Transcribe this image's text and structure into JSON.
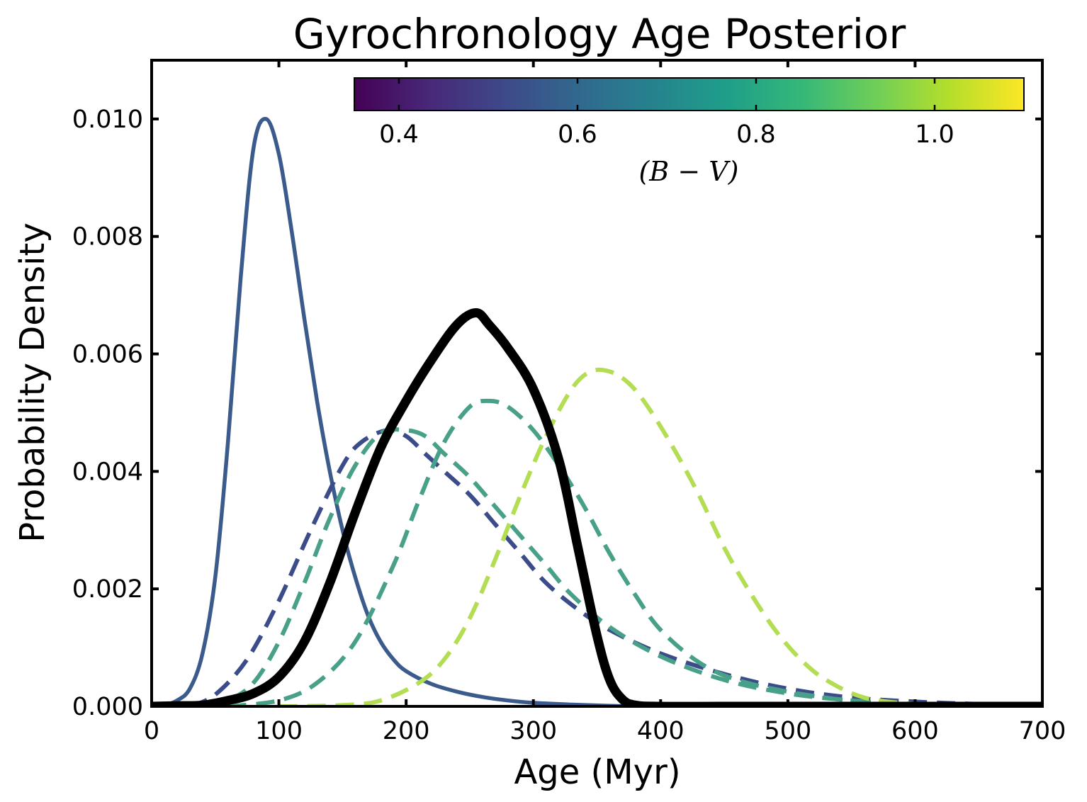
{
  "chart_data": {
    "type": "line",
    "title": "Gyrochronology Age Posterior",
    "xlabel": "Age (Myr)",
    "ylabel": "Probability Density",
    "xlim": [
      0,
      700
    ],
    "ylim": [
      0,
      0.011
    ],
    "xticks": [
      "0",
      "100",
      "200",
      "300",
      "400",
      "500",
      "600",
      "700"
    ],
    "yticks": [
      "0.000",
      "0.002",
      "0.004",
      "0.006",
      "0.008",
      "0.010"
    ],
    "colorbar": {
      "label": "(B − V)",
      "range": [
        0.35,
        1.1
      ],
      "ticks": [
        "0.4",
        "0.6",
        "0.8",
        "1.0"
      ],
      "colormap": "viridis",
      "colors": [
        "#440154",
        "#482878",
        "#3e4989",
        "#31688e",
        "#26828e",
        "#1f9e89",
        "#35b779",
        "#6ece58",
        "#b5de2b",
        "#fde725"
      ]
    },
    "series": [
      {
        "color": "#3b5b8c",
        "style": "solid",
        "x": [
          0,
          10,
          20,
          30,
          40,
          50,
          60,
          70,
          80,
          90,
          100,
          110,
          120,
          130,
          140,
          150,
          160,
          170,
          180,
          190,
          200,
          220,
          240,
          260,
          280,
          300,
          330,
          360,
          380
        ],
        "y": [
          0.0,
          2e-05,
          0.0001,
          0.0003,
          0.0009,
          0.0022,
          0.0045,
          0.0073,
          0.0095,
          0.01,
          0.0094,
          0.0081,
          0.0066,
          0.0052,
          0.004,
          0.003,
          0.0022,
          0.00155,
          0.0011,
          0.0008,
          0.0006,
          0.00038,
          0.00025,
          0.00016,
          0.0001,
          6e-05,
          3e-05,
          1e-05,
          0.0
        ]
      },
      {
        "color": "#3c4c8a",
        "style": "dashed",
        "x": [
          30,
          50,
          75,
          100,
          125,
          150,
          165,
          185,
          200,
          215,
          230,
          250,
          270,
          290,
          310,
          335,
          360,
          400,
          450,
          500,
          550,
          600,
          650,
          700
        ],
        "y": [
          0.0,
          0.0002,
          0.0008,
          0.0018,
          0.003,
          0.0041,
          0.0045,
          0.0047,
          0.0046,
          0.0043,
          0.004,
          0.0036,
          0.0031,
          0.0026,
          0.0021,
          0.00165,
          0.0013,
          0.0009,
          0.00055,
          0.0003,
          0.00015,
          8e-05,
          4e-05,
          2e-05
        ]
      },
      {
        "color": "#48a088",
        "style": "dashed",
        "x": [
          40,
          60,
          80,
          100,
          120,
          140,
          160,
          180,
          200,
          215,
          230,
          250,
          270,
          290,
          310,
          330,
          360,
          400,
          450,
          500,
          550,
          600,
          650,
          700
        ],
        "y": [
          0.0,
          0.0001,
          0.0004,
          0.0011,
          0.0021,
          0.0032,
          0.0041,
          0.00465,
          0.0047,
          0.0046,
          0.0043,
          0.0039,
          0.0034,
          0.0029,
          0.0024,
          0.0019,
          0.00135,
          0.00085,
          0.00045,
          0.00022,
          0.0001,
          4e-05,
          2e-05,
          1e-05
        ]
      },
      {
        "color": "#48a088",
        "style": "dashed",
        "x": [
          60,
          100,
          130,
          160,
          190,
          210,
          230,
          250,
          265,
          280,
          300,
          320,
          340,
          360,
          380,
          400,
          430,
          460,
          500,
          540,
          580,
          620,
          700
        ],
        "y": [
          0.0,
          0.0001,
          0.0004,
          0.0011,
          0.0024,
          0.0035,
          0.0045,
          0.0051,
          0.0052,
          0.0051,
          0.0047,
          0.0041,
          0.0034,
          0.0026,
          0.0019,
          0.0013,
          0.00075,
          0.00045,
          0.00025,
          0.00012,
          5e-05,
          2e-05,
          0.0
        ]
      },
      {
        "color": "#b3dd52",
        "style": "dashed",
        "x": [
          100,
          150,
          180,
          210,
          230,
          250,
          270,
          290,
          310,
          330,
          345,
          360,
          375,
          390,
          410,
          430,
          450,
          470,
          490,
          510,
          530,
          560,
          600,
          650,
          700
        ],
        "y": [
          0.0,
          2e-05,
          0.0001,
          0.0004,
          0.0008,
          0.0015,
          0.0025,
          0.0036,
          0.0046,
          0.0054,
          0.0057,
          0.0057,
          0.0055,
          0.0051,
          0.0044,
          0.0036,
          0.0027,
          0.00195,
          0.0013,
          0.0008,
          0.00045,
          0.00015,
          4e-05,
          1e-05,
          0.0
        ]
      },
      {
        "color": "#000000",
        "style": "solid-thick",
        "x": [
          0,
          20,
          40,
          60,
          80,
          100,
          120,
          140,
          160,
          180,
          200,
          220,
          240,
          255,
          265,
          280,
          300,
          320,
          335,
          350,
          360,
          370,
          380,
          400,
          450,
          500,
          600,
          700
        ],
        "y": [
          0.0,
          1e-05,
          2e-05,
          0.0001,
          0.00022,
          0.0005,
          0.0011,
          0.0021,
          0.0033,
          0.0044,
          0.0052,
          0.0059,
          0.0065,
          0.0067,
          0.0065,
          0.0061,
          0.0054,
          0.0042,
          0.0027,
          0.0012,
          0.00045,
          0.00012,
          2e-05,
          0.0,
          0.0,
          0.0,
          0.0,
          0.0
        ]
      }
    ]
  }
}
